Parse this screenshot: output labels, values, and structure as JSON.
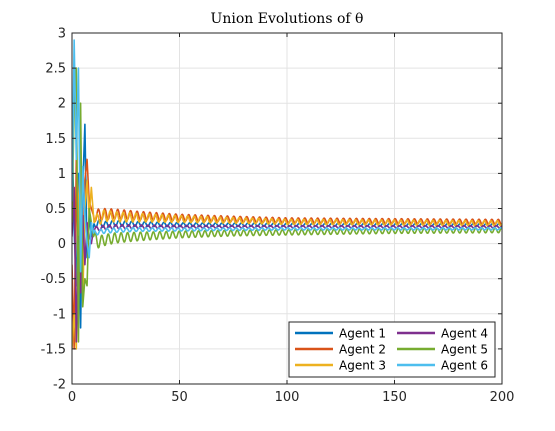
{
  "chart_data": {
    "type": "line",
    "title": "Union Evolutions of θ",
    "xlabel": "",
    "ylabel": "",
    "xlim": [
      0,
      200
    ],
    "ylim": [
      -2,
      3
    ],
    "xticks": [
      0,
      50,
      100,
      150,
      200
    ],
    "xtick_labels": [
      "0",
      "50",
      "100",
      "150",
      "200"
    ],
    "yticks": [
      -2,
      -1.5,
      -1,
      -0.5,
      0,
      0.5,
      1,
      1.5,
      2,
      2.5,
      3
    ],
    "ytick_labels": [
      "-2",
      "-1.5",
      "-1",
      "-0.5",
      "0",
      "0.5",
      "1",
      "1.5",
      "2",
      "2.5",
      "3"
    ],
    "grid": true,
    "legend_position": "bottom-right",
    "legend_columns": 2,
    "series": [
      {
        "name": "Agent 1",
        "color": "#0072BD",
        "points": [
          [
            0,
            1.7
          ],
          [
            1,
            0.2
          ],
          [
            2,
            -0.6
          ],
          [
            3,
            1.0
          ],
          [
            4,
            -1.2
          ],
          [
            5,
            0.8
          ],
          [
            6,
            1.7
          ],
          [
            7,
            -0.2
          ],
          [
            8,
            0.4
          ],
          [
            9,
            0.1
          ],
          [
            10,
            0.25
          ],
          [
            12,
            0.3
          ],
          [
            15,
            0.27
          ],
          [
            20,
            0.29
          ],
          [
            30,
            0.28
          ],
          [
            50,
            0.27
          ],
          [
            100,
            0.27
          ],
          [
            150,
            0.27
          ],
          [
            200,
            0.27
          ]
        ],
        "osc_amp": 0.02,
        "osc_period": 3
      },
      {
        "name": "Agent 2",
        "color": "#D95319",
        "points": [
          [
            0,
            -0.3
          ],
          [
            1,
            -1.5
          ],
          [
            2,
            1.2
          ],
          [
            3,
            -0.9
          ],
          [
            4,
            1.5
          ],
          [
            5,
            -0.4
          ],
          [
            6,
            0.9
          ],
          [
            7,
            1.2
          ],
          [
            8,
            0.6
          ],
          [
            9,
            0.5
          ],
          [
            10,
            0.4
          ],
          [
            15,
            0.42
          ],
          [
            20,
            0.42
          ],
          [
            30,
            0.4
          ],
          [
            50,
            0.37
          ],
          [
            75,
            0.35
          ],
          [
            100,
            0.33
          ],
          [
            150,
            0.32
          ],
          [
            200,
            0.31
          ]
        ],
        "osc_amp": 0.035,
        "osc_period": 3
      },
      {
        "name": "Agent 3",
        "color": "#EDB120",
        "points": [
          [
            0,
            -1.5
          ],
          [
            1,
            -1.0
          ],
          [
            2,
            -1.5
          ],
          [
            3,
            0.6
          ],
          [
            4,
            1.2
          ],
          [
            5,
            -0.8
          ],
          [
            6,
            0.5
          ],
          [
            7,
            0.9
          ],
          [
            8,
            0.4
          ],
          [
            9,
            0.8
          ],
          [
            10,
            0.4
          ],
          [
            12,
            0.33
          ],
          [
            15,
            0.4
          ],
          [
            20,
            0.38
          ],
          [
            30,
            0.37
          ],
          [
            50,
            0.35
          ],
          [
            75,
            0.33
          ],
          [
            100,
            0.31
          ],
          [
            150,
            0.3
          ],
          [
            200,
            0.29
          ]
        ],
        "osc_amp": 0.035,
        "osc_period": 3
      },
      {
        "name": "Agent 4",
        "color": "#7E2F8E",
        "points": [
          [
            0,
            0.1
          ],
          [
            1,
            0.8
          ],
          [
            2,
            -1.4
          ],
          [
            3,
            0.1
          ],
          [
            4,
            -0.7
          ],
          [
            5,
            0.4
          ],
          [
            6,
            -0.3
          ],
          [
            7,
            0.3
          ],
          [
            8,
            0.1
          ],
          [
            9,
            0.0
          ],
          [
            10,
            0.2
          ],
          [
            15,
            0.23
          ],
          [
            20,
            0.24
          ],
          [
            30,
            0.24
          ],
          [
            50,
            0.24
          ],
          [
            100,
            0.24
          ],
          [
            150,
            0.24
          ],
          [
            200,
            0.24
          ]
        ],
        "osc_amp": 0.015,
        "osc_period": 3
      },
      {
        "name": "Agent 5",
        "color": "#77AC30",
        "points": [
          [
            0,
            0.3
          ],
          [
            1,
            2.0
          ],
          [
            2,
            2.5
          ],
          [
            3,
            -1.4
          ],
          [
            4,
            2.0
          ],
          [
            5,
            -0.9
          ],
          [
            6,
            -0.5
          ],
          [
            7,
            -0.6
          ],
          [
            8,
            0.5
          ],
          [
            9,
            0.3
          ],
          [
            10,
            0.1
          ],
          [
            12,
            0.02
          ],
          [
            15,
            0.05
          ],
          [
            20,
            0.08
          ],
          [
            30,
            0.1
          ],
          [
            50,
            0.13
          ],
          [
            75,
            0.15
          ],
          [
            100,
            0.16
          ],
          [
            150,
            0.18
          ],
          [
            200,
            0.19
          ]
        ],
        "osc_amp": 0.035,
        "osc_period": 3
      },
      {
        "name": "Agent 6",
        "color": "#4DBEEE",
        "points": [
          [
            0,
            0.6
          ],
          [
            1,
            2.9
          ],
          [
            2,
            1.2
          ],
          [
            3,
            2.5
          ],
          [
            4,
            -0.4
          ],
          [
            5,
            1.1
          ],
          [
            6,
            0.4
          ],
          [
            7,
            0.0
          ],
          [
            8,
            -0.2
          ],
          [
            9,
            0.3
          ],
          [
            10,
            0.15
          ],
          [
            15,
            0.18
          ],
          [
            20,
            0.19
          ],
          [
            30,
            0.2
          ],
          [
            50,
            0.2
          ],
          [
            100,
            0.21
          ],
          [
            150,
            0.21
          ],
          [
            200,
            0.21
          ]
        ],
        "osc_amp": 0.015,
        "osc_period": 3
      }
    ]
  }
}
